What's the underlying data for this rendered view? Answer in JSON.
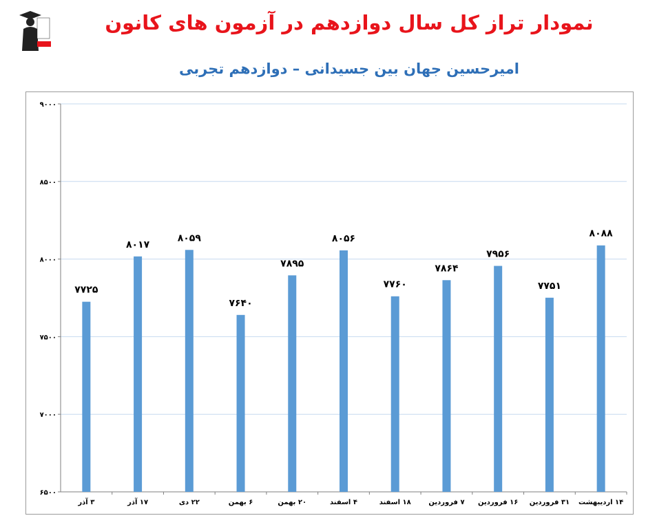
{
  "header": {
    "title": "نمودار تراز کل سال دوازدهم در آزمون های کانون",
    "subtitle": "امیرحسین جهان بین جسیدانی – دوازدهم تجربی",
    "logo_icon": "kanoon-graduate-logo",
    "title_color": "#e8141b",
    "subtitle_color": "#2e6fb7"
  },
  "chart_data": {
    "type": "bar",
    "categories": [
      "۳ آذر",
      "۱۷ آذر",
      "۲۲ دی",
      "۶ بهمن",
      "۲۰ بهمن",
      "۴ اسفند",
      "۱۸ اسفند",
      "۷ فروردین",
      "۱۶ فروردین",
      "۳۱ فروردین",
      "۱۴ اردیبهشت"
    ],
    "values": [
      7725,
      8017,
      8059,
      7640,
      7895,
      8056,
      7760,
      7864,
      7956,
      7751,
      8088
    ],
    "value_labels": [
      "۷۷۲۵",
      "۸۰۱۷",
      "۸۰۵۹",
      "۷۶۴۰",
      "۷۸۹۵",
      "۸۰۵۶",
      "۷۷۶۰",
      "۷۸۶۴",
      "۷۹۵۶",
      "۷۷۵۱",
      "۸۰۸۸"
    ],
    "y_ticks": [
      6500,
      7000,
      7500,
      8000,
      8500,
      9000
    ],
    "y_tick_labels": [
      "۶۵۰۰",
      "۷۰۰۰",
      "۷۵۰۰",
      "۸۰۰۰",
      "۸۵۰۰",
      "۹۰۰۰"
    ],
    "ylim": [
      6500,
      9000
    ],
    "grid": true,
    "bar_color": "#5b9bd5",
    "grid_color": "#c6d9ef"
  }
}
